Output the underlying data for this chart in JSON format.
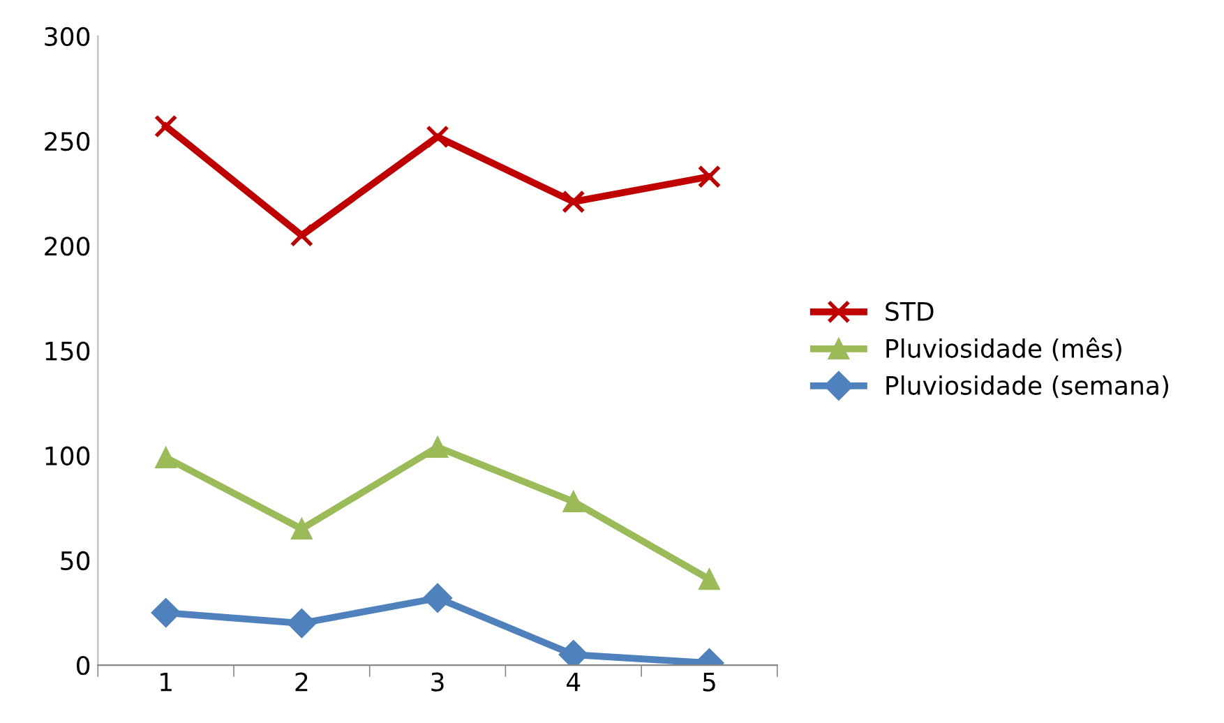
{
  "chart_data": {
    "type": "line",
    "categories": [
      "1",
      "2",
      "3",
      "4",
      "5"
    ],
    "series": [
      {
        "name": "STD",
        "color": "#c00000",
        "marker": "cross",
        "values": [
          257,
          205,
          252,
          221,
          233
        ]
      },
      {
        "name": "Pluviosidade (mês)",
        "color": "#9bbb59",
        "marker": "triangle",
        "values": [
          99,
          65,
          104,
          78,
          41
        ]
      },
      {
        "name": "Pluviosidade (semana)",
        "color": "#4f81bd",
        "marker": "diamond",
        "values": [
          25,
          20,
          32,
          5,
          1
        ]
      }
    ],
    "ylim": [
      0,
      300
    ],
    "yticks": [
      0,
      50,
      100,
      150,
      200,
      250,
      300
    ],
    "grid": false,
    "legend": "right",
    "line_style": "solid"
  }
}
